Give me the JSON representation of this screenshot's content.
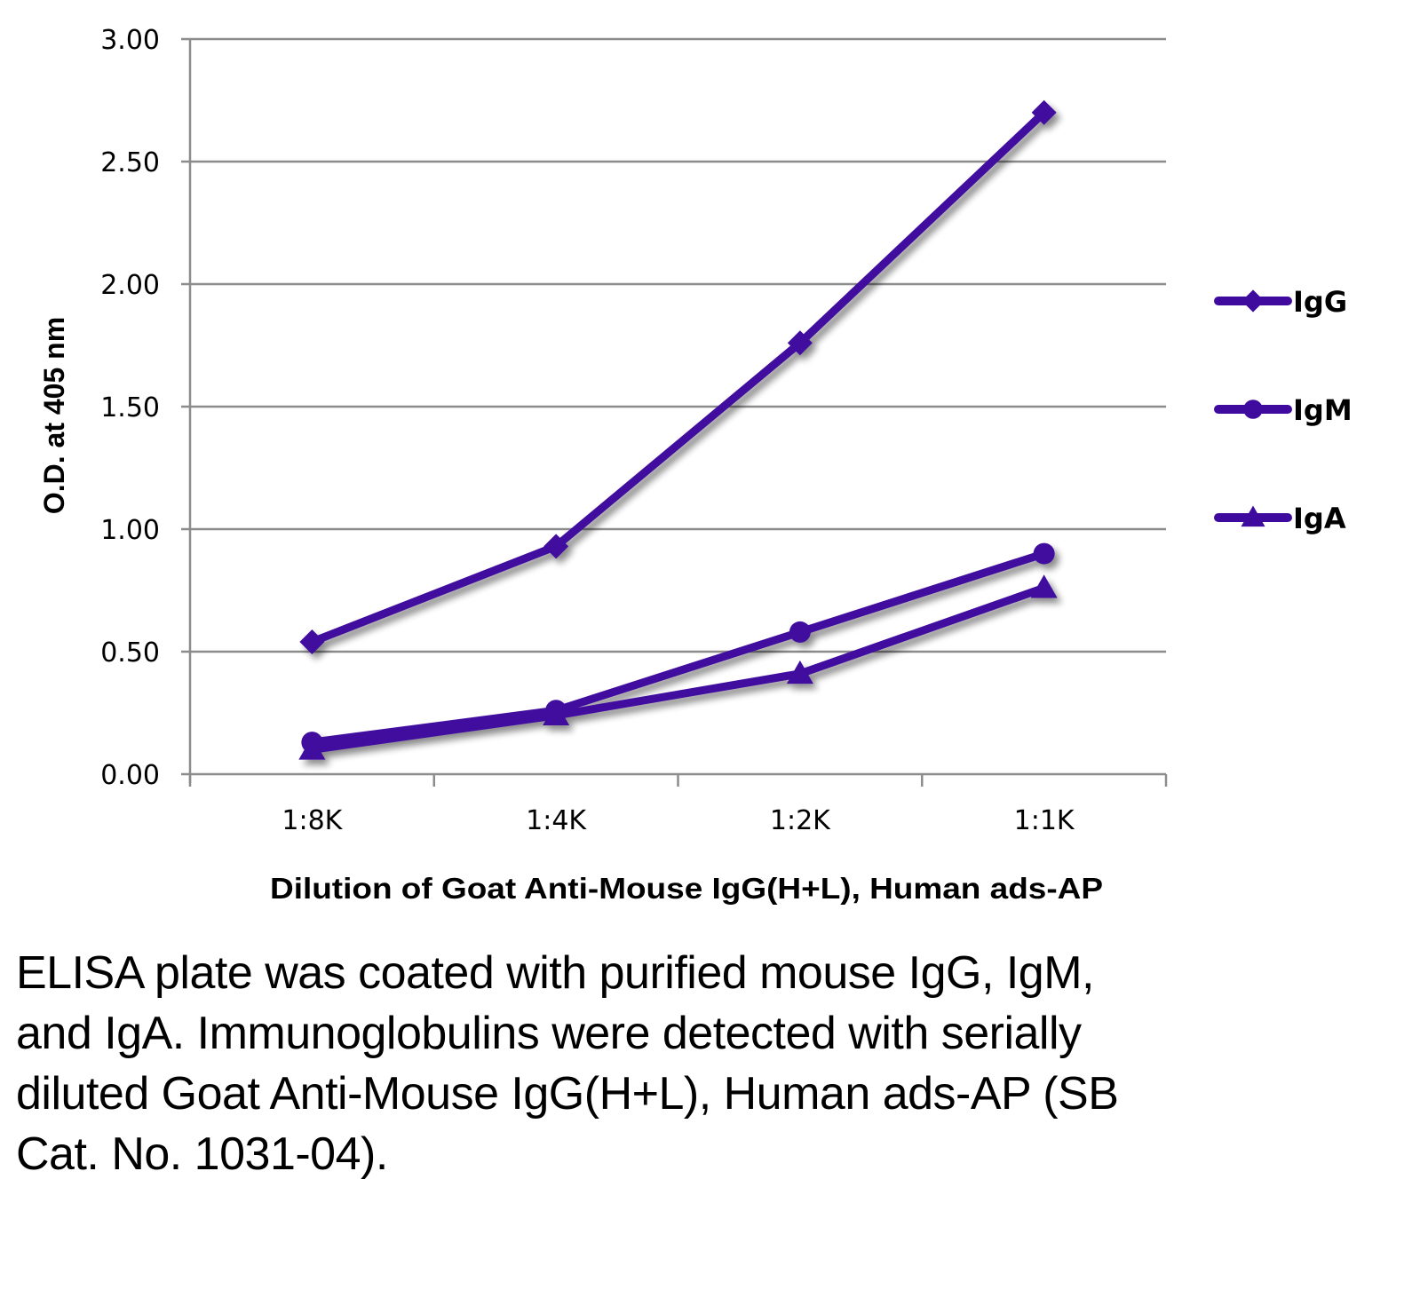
{
  "chart_data": {
    "type": "line",
    "title": "",
    "xlabel": "Dilution of Goat Anti-Mouse IgG(H+L), Human ads-AP",
    "ylabel": "O.D. at 405 nm",
    "categories": [
      "1:8K",
      "1:4K",
      "1:2K",
      "1:1K"
    ],
    "ylim": [
      0,
      3
    ],
    "yticks": [
      "0.00",
      "0.50",
      "1.00",
      "1.50",
      "2.00",
      "2.50",
      "3.00"
    ],
    "ytick_values": [
      0,
      0.5,
      1.0,
      1.5,
      2.0,
      2.5,
      3.0
    ],
    "grid": true,
    "legend_position": "right",
    "series": [
      {
        "name": "IgG",
        "marker": "diamond",
        "color": "#3f0a9e",
        "values": [
          0.54,
          0.93,
          1.76,
          2.7
        ]
      },
      {
        "name": "IgM",
        "marker": "circle",
        "color": "#3f0a9e",
        "values": [
          0.13,
          0.26,
          0.58,
          0.9
        ]
      },
      {
        "name": "IgA",
        "marker": "triangle",
        "color": "#3f0a9e",
        "values": [
          0.1,
          0.24,
          0.41,
          0.76
        ]
      }
    ]
  },
  "caption": "ELISA plate was coated with purified mouse IgG, IgM, and IgA.  Immunoglobulins were detected with serially diluted Goat Anti-Mouse IgG(H+L), Human ads-AP (SB Cat. No. 1031-04)."
}
